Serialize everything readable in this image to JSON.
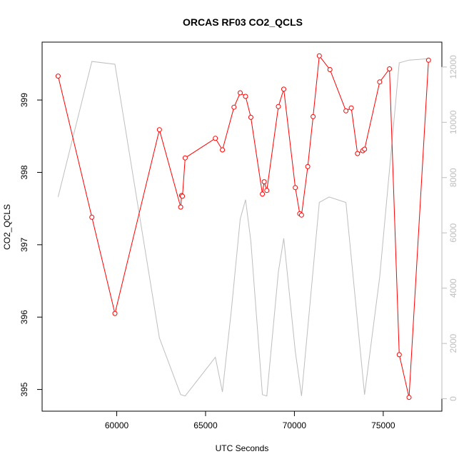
{
  "chart_data": {
    "type": "line",
    "title": "ORCAS RF03 CO2_QCLS",
    "xlabel": "UTC Seconds",
    "ylabel": "CO2_QCLS",
    "xlim": [
      55800,
      78300
    ],
    "ylim": [
      394.7,
      399.8
    ],
    "y2lim": [
      -450,
      12900
    ],
    "x_ticks": [
      60000,
      65000,
      70000,
      75000
    ],
    "y_ticks": [
      395,
      396,
      397,
      398,
      399
    ],
    "y2_ticks": [
      0,
      2000,
      4000,
      6000,
      8000,
      10000,
      12000
    ],
    "grid": false,
    "legend": "none",
    "colors": {
      "co2": "#ff0000",
      "secondary": "#bebebe"
    },
    "series": [
      {
        "axis": "left",
        "style": "line-points",
        "x": [
          56700,
          58600,
          59900,
          62400,
          63600,
          63650,
          63700,
          63850,
          65550,
          65950,
          66600,
          66950,
          67250,
          67550,
          68200,
          68300,
          68450,
          69100,
          69400,
          70050,
          70300,
          70400,
          70750,
          71050,
          71400,
          72000,
          72900,
          73200,
          73550,
          73850,
          73950,
          74800,
          75350,
          75900,
          76450,
          77550
        ],
        "y": [
          399.33,
          397.38,
          396.05,
          398.59,
          397.52,
          397.68,
          397.67,
          398.2,
          398.47,
          398.31,
          398.9,
          399.1,
          399.05,
          398.76,
          397.7,
          397.87,
          397.75,
          398.91,
          399.15,
          397.79,
          397.43,
          397.41,
          398.08,
          398.77,
          399.61,
          399.42,
          398.85,
          398.89,
          398.26,
          398.3,
          398.32,
          399.25,
          399.43,
          395.48,
          394.89,
          399.55
        ]
      },
      {
        "axis": "right",
        "style": "line",
        "x": [
          56700,
          58600,
          59900,
          62400,
          63600,
          63850,
          65550,
          65950,
          66450,
          66950,
          67250,
          67550,
          68200,
          68450,
          69100,
          69400,
          70050,
          70400,
          71400,
          71950,
          72900,
          73950,
          74800,
          75900,
          76450,
          77550
        ],
        "y": [
          7300,
          12200,
          12100,
          2200,
          150,
          100,
          1500,
          250,
          3200,
          6500,
          7200,
          5700,
          150,
          100,
          4600,
          5800,
          1700,
          100,
          7100,
          7300,
          7100,
          150,
          4400,
          12150,
          12250,
          12300
        ]
      }
    ]
  }
}
